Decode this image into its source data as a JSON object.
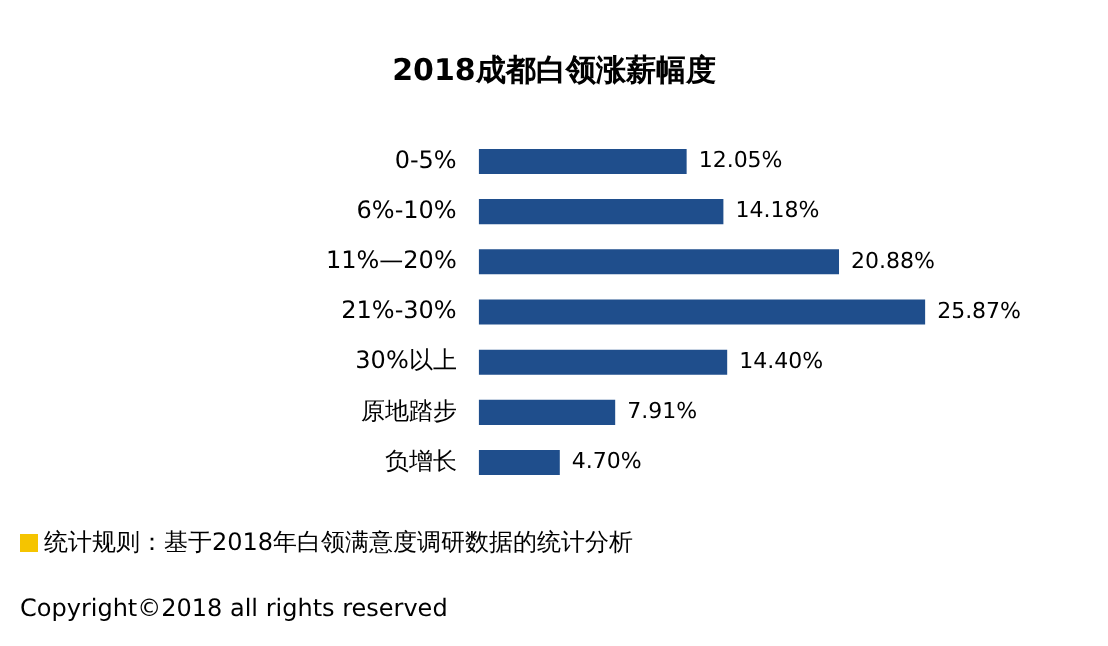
{
  "chart_data": {
    "type": "bar",
    "orientation": "horizontal",
    "title": "2018成都白领涨薪幅度",
    "categories": [
      "0-5%",
      "6%-10%",
      "11%—20%",
      "21%-30%",
      "30%以上",
      "原地踏步",
      "负增长"
    ],
    "values": [
      12.05,
      14.18,
      20.88,
      25.87,
      14.4,
      7.91,
      4.7
    ],
    "value_labels": [
      "12.05%",
      "14.18%",
      "20.88%",
      "25.87%",
      "14.40%",
      "7.91%",
      "4.70%"
    ],
    "color": "#1f4e8c",
    "legend": false,
    "annotations": [
      "统计规则：基于2018年白领满意度调研数据的统计分析",
      "Copyright©2018 all rights reserved"
    ]
  }
}
